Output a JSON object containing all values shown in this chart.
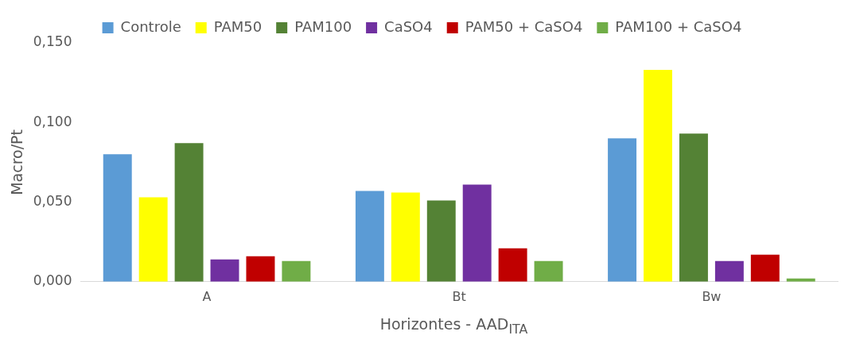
{
  "chart_data": {
    "type": "bar",
    "xlabel": "Horizontes - AAD$_{ITA}$",
    "ylabel": "Macro/Pt",
    "categories": [
      "A",
      "Bt",
      "Bw"
    ],
    "series": [
      {
        "name": "Controle",
        "color": "#5b9bd5",
        "values": [
          0.08,
          0.057,
          0.09
        ]
      },
      {
        "name": "PAM50",
        "color": "#ffff00",
        "values": [
          0.053,
          0.056,
          0.133
        ]
      },
      {
        "name": "PAM100",
        "color": "#548235",
        "values": [
          0.087,
          0.051,
          0.093
        ]
      },
      {
        "name": "CaSO4",
        "color": "#7030a0",
        "values": [
          0.014,
          0.061,
          0.013
        ]
      },
      {
        "name": "PAM50 + CaSO4",
        "color": "#c00000",
        "values": [
          0.016,
          0.021,
          0.017
        ]
      },
      {
        "name": "PAM100 + CaSO4",
        "color": "#70ad47",
        "values": [
          0.013,
          0.013,
          0.002
        ]
      }
    ],
    "ylim": [
      0,
      0.15
    ],
    "yticks": [
      {
        "value": 0,
        "label": "0,000"
      },
      {
        "value": 0.05,
        "label": "0,050"
      },
      {
        "value": 0.1,
        "label": "0,100"
      },
      {
        "value": 0.15,
        "label": "0,150"
      }
    ],
    "grid": false,
    "legend": "top"
  }
}
